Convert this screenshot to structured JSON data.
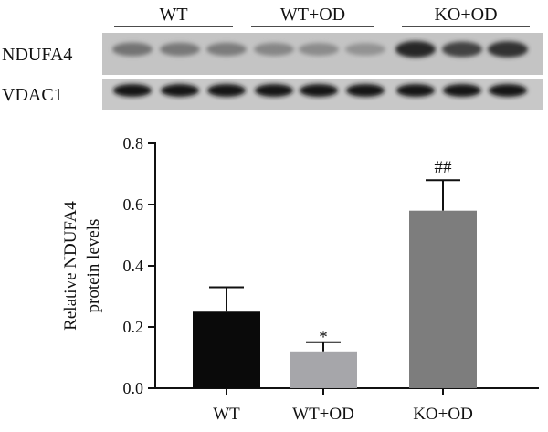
{
  "blot": {
    "groups": [
      "WT",
      "WT+OD",
      "KO+OD"
    ],
    "rows": [
      {
        "label": "NDUFA4",
        "intensities": [
          0.45,
          0.42,
          0.4,
          0.35,
          0.32,
          0.28,
          0.85,
          0.7,
          0.8
        ]
      },
      {
        "label": "VDAC1",
        "intensities": [
          0.95,
          0.92,
          0.93,
          0.94,
          0.95,
          0.93,
          0.95,
          0.94,
          0.93
        ]
      }
    ]
  },
  "chart_data": {
    "type": "bar",
    "categories": [
      "WT",
      "WT+OD",
      "KO+OD"
    ],
    "series": [
      {
        "values": [
          0.25,
          0.12,
          0.58
        ],
        "errors": [
          0.08,
          0.03,
          0.1
        ],
        "colors": [
          "#0a0a0a",
          "#a6a6aa",
          "#7d7d7d"
        ]
      }
    ],
    "annotations": [
      "",
      "*",
      "##"
    ],
    "ylabel": [
      "Relative NDUFA4",
      "protein levels"
    ],
    "ylim": [
      0,
      0.8
    ],
    "yticks": [
      "0.0",
      "0.2",
      "0.4",
      "0.6",
      "0.8"
    ],
    "grid": false
  }
}
